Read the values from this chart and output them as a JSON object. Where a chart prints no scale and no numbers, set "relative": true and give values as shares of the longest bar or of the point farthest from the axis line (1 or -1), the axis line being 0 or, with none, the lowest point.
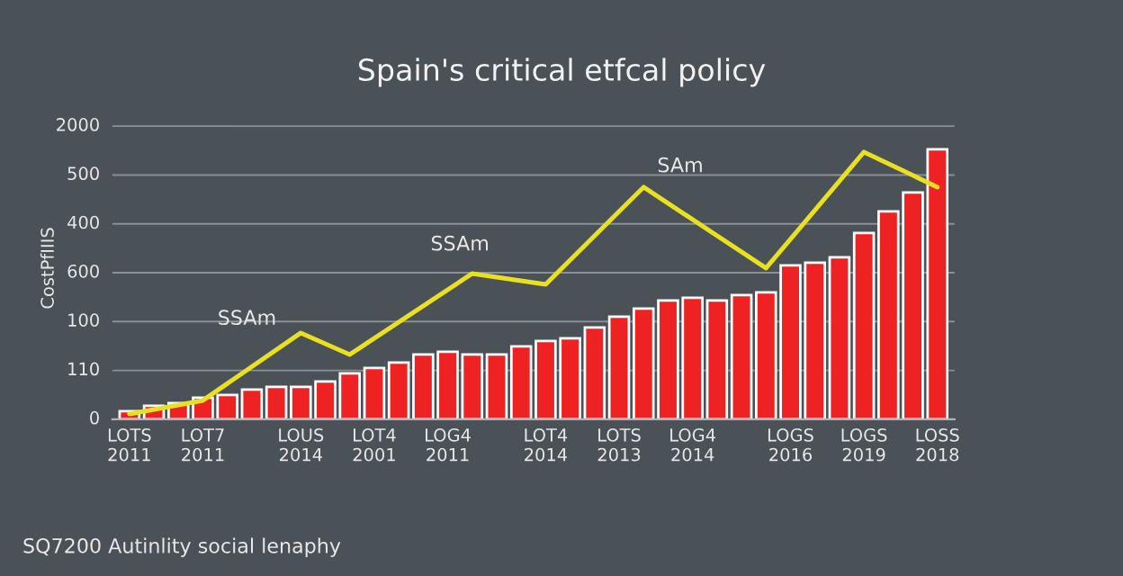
{
  "chart_data": {
    "type": "bar",
    "title": "Spain's critical etfcal policy",
    "ylabel": "CostPfIIIS",
    "relative": true,
    "categories": [
      "LOTS\n2011",
      null,
      null,
      "LOT7\n2011",
      null,
      null,
      null,
      "LOUS\n2014",
      null,
      null,
      "LOT4\n2001",
      null,
      null,
      "LOG4\n2011",
      null,
      null,
      null,
      "LOT4\n2014",
      null,
      null,
      "LOTS\n2013",
      null,
      null,
      "LOG4\n2014",
      null,
      null,
      null,
      "LOGS\n2016",
      null,
      null,
      "LOGS\n2019",
      null,
      null,
      "LOSS\n2018"
    ],
    "series": [
      {
        "color": "#ee2222",
        "values": [
          0.03,
          0.05,
          0.06,
          0.08,
          0.09,
          0.11,
          0.12,
          0.12,
          0.14,
          0.17,
          0.19,
          0.21,
          0.24,
          0.25,
          0.24,
          0.24,
          0.27,
          0.29,
          0.3,
          0.34,
          0.38,
          0.41,
          0.44,
          0.45,
          0.44,
          0.46,
          0.47,
          0.57,
          0.58,
          0.6,
          0.69,
          0.77,
          0.84,
          1
        ]
      },
      {
        "type": "line",
        "color": "#e8e020",
        "values": [
          0.02,
          null,
          null,
          0.07,
          null,
          null,
          null,
          0.32,
          null,
          0.24,
          null,
          null,
          null,
          null,
          0.54,
          null,
          null,
          0.5,
          null,
          null,
          null,
          0.86,
          null,
          null,
          null,
          null,
          0.56,
          null,
          null,
          null,
          0.99,
          null,
          null,
          0.86
        ]
      }
    ],
    "grid": "y",
    "annotations": [
      "SSAm",
      "SSAm",
      "SAm",
      "SQ7200 Autinlity social lenaphy",
      "0",
      "110",
      "100",
      "600",
      "400",
      "500",
      "2000"
    ]
  }
}
